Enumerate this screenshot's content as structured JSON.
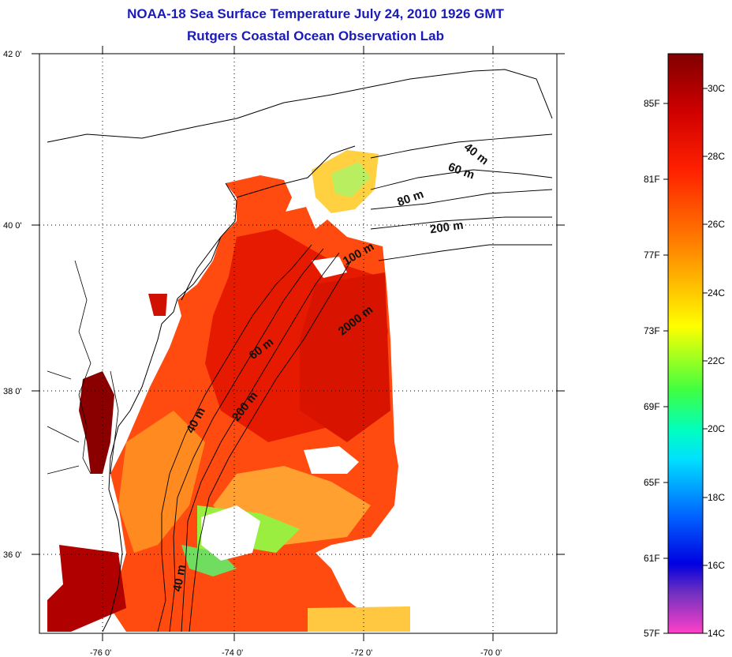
{
  "title": {
    "line1": "NOAA-18 Sea Surface Temperature July 24, 2010 1926 GMT",
    "line2": "Rutgers Coastal Ocean Observation Lab"
  },
  "map": {
    "lat_labels": [
      "42 0'",
      "40 0'",
      "38 0'",
      "36 0'"
    ],
    "lon_labels": [
      "-76 0'",
      "-74 0'",
      "-72 0'",
      "-70 0'"
    ],
    "contour_labels": [
      "40 m",
      "60 m",
      "80 m",
      "200 m",
      "100 m",
      "2000 m",
      "60 m",
      "200 m",
      "40 m",
      "40 m"
    ]
  },
  "colorbar": {
    "fahrenheit": [
      "85F",
      "81F",
      "77F",
      "73F",
      "69F",
      "65F",
      "61F",
      "57F"
    ],
    "celsius": [
      "30C",
      "28C",
      "26C",
      "24C",
      "22C",
      "20C",
      "18C",
      "16C",
      "14C"
    ],
    "colors": [
      "#800000",
      "#ff0000",
      "#ff8000",
      "#ffff00",
      "#00ff00",
      "#00ffff",
      "#0000ff",
      "#8000c0",
      "#ff40c0"
    ]
  }
}
